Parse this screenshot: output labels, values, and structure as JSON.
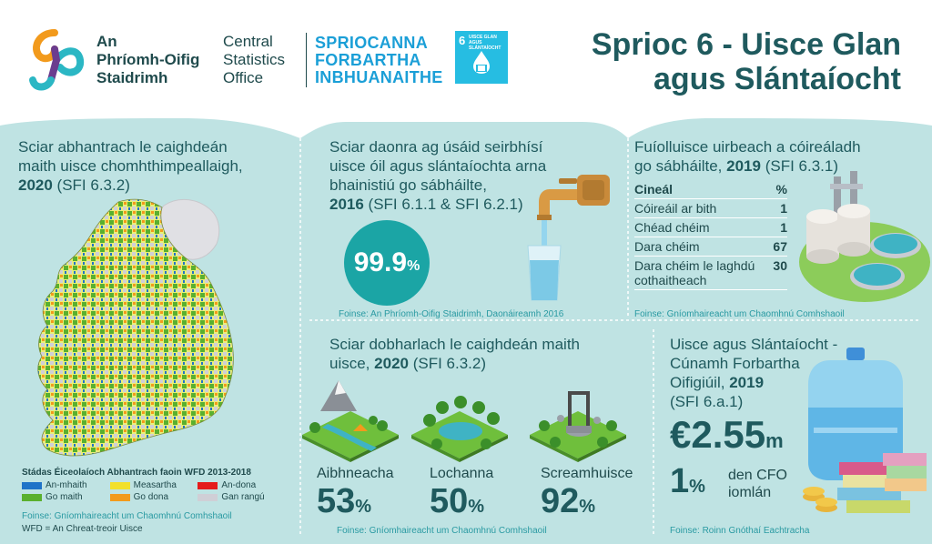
{
  "header": {
    "logo_lines": [
      "An",
      "Phríomh-Oifig",
      "Staidrimh"
    ],
    "cso_lines": [
      "Central",
      "Statistics",
      "Office"
    ],
    "sdg_lines": [
      "SPRIOCANNA",
      "FORBARTHA",
      "INBHUANAITHE"
    ],
    "goal_icon": {
      "number": "6",
      "lines": [
        "UISCE GLAN AGUS",
        "SLÁNTAÍOCHT"
      ]
    },
    "title_lines": [
      "Sprioc 6 - Uisce Glan",
      "agus Slántaíocht"
    ]
  },
  "colors": {
    "teal_bg": "#bfe3e3",
    "dark_teal": "#1f5a5e",
    "accent_circle": "#1ba5a5",
    "sdg_blue": "#1b9fd7",
    "source": "#2a9aa2"
  },
  "river_panel": {
    "heading_lines": [
      "Sciar abhantrach le caighdeán",
      "maith uisce chomhthimpeallaigh,"
    ],
    "heading_year": "2020",
    "heading_ref": " (SFI 6.3.2)",
    "legend_title": "Stádas Éiceolaíoch Abhantrach faoin WFD 2013-2018",
    "legend": [
      {
        "label": "An-mhaith",
        "color": "#1e73c8"
      },
      {
        "label": "Measartha",
        "color": "#f2e02b"
      },
      {
        "label": "An-dona",
        "color": "#e51b1b"
      },
      {
        "label": "Go maith",
        "color": "#5ab02e"
      },
      {
        "label": "Go dona",
        "color": "#f29a1c"
      },
      {
        "label": "Gan rangú",
        "color": "#cfcfd6"
      }
    ],
    "source": "Foinse: Gníomhaireacht um Chaomhnú Comhshaoil",
    "note": "WFD = An Chreat-treoir Uisce"
  },
  "population_panel": {
    "heading_lines": [
      "Sciar daonra ag úsáid seirbhísí",
      "uisce óil agus slántaíochta arna",
      "bhainistiú go sábháilte,"
    ],
    "heading_year": "2016",
    "heading_ref": " (SFI 6.1.1 & SFI 6.2.1)",
    "value": "99.9",
    "unit": "%",
    "source": "Foinse: An Phríomh-Oifig Staidrimh, Daonáireamh 2016"
  },
  "wastewater_panel": {
    "heading_lines": [
      "Fuíolluisce uirbeach a cóireáladh",
      "go sábháilte,"
    ],
    "heading_year": "2019",
    "heading_ref": " (SFI 6.3.1)",
    "table": {
      "col1": "Cineál",
      "col2": "%",
      "rows": [
        {
          "label": "Cóireáil ar bith",
          "value": "1"
        },
        {
          "label": "Chéad chéim",
          "value": "1"
        },
        {
          "label": "Dara chéim",
          "value": "67"
        },
        {
          "label": "Dara chéim le laghdú cothaitheach",
          "value": "30"
        }
      ]
    },
    "source": "Foinse: Gníomhaireacht um Chaomhnú Comhshaoil"
  },
  "waterbody_panel": {
    "heading_lines": [
      "Sciar dobharlach le caighdeán maith",
      "uisce,"
    ],
    "heading_year": "2020",
    "heading_ref": " (SFI 6.3.2)",
    "items": [
      {
        "label": "Aibhneacha",
        "value": "53",
        "unit": "%"
      },
      {
        "label": "Lochanna",
        "value": "50",
        "unit": "%"
      },
      {
        "label": "Screamhuisce",
        "value": "92",
        "unit": "%"
      }
    ],
    "source": "Foinse: Gníomhaireacht um Chaomhnú Comhshaoil"
  },
  "aid_panel": {
    "heading_lines": [
      "Uisce agus Slántaíocht -",
      "Cúnamh Forbartha",
      "Oifigiúil,"
    ],
    "heading_year": "2019",
    "heading_ref": "(SFI 6.a.1)",
    "value": "€2.55",
    "value_unit": "m",
    "pct": "1",
    "pct_unit": "%",
    "pct_text_lines": [
      "den CFO",
      "iomlán"
    ],
    "source": "Foinse: Roinn Gnóthaí Eachtracha"
  }
}
